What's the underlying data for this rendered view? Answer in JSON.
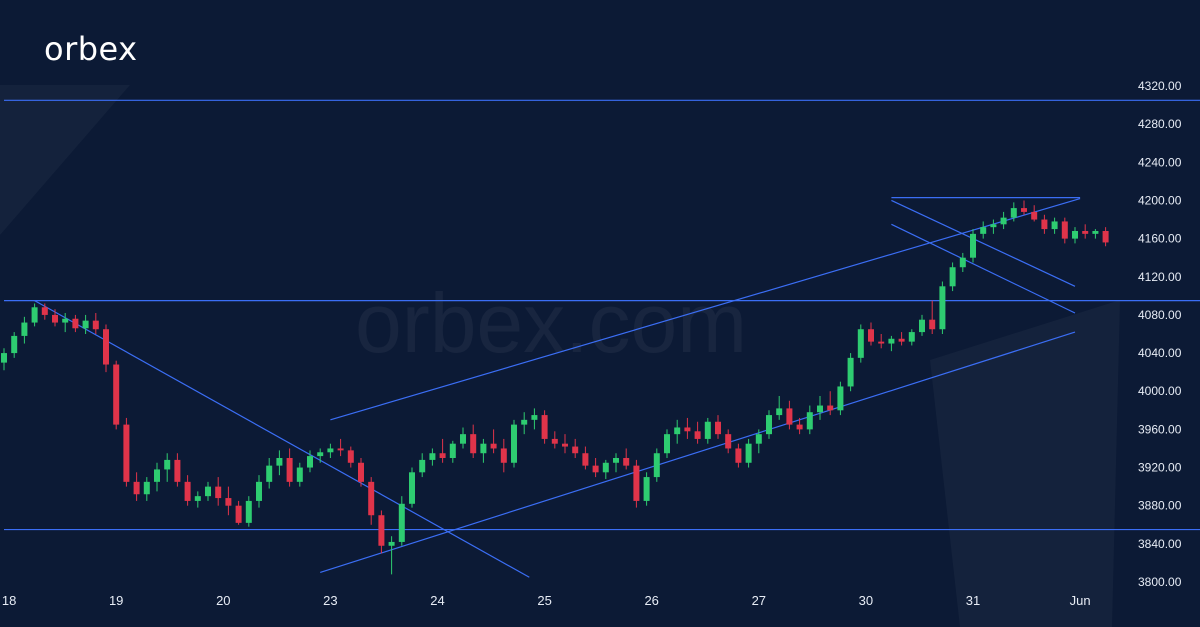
{
  "brand": {
    "logo_text": "orbex",
    "watermark_text": "orbex.com"
  },
  "colors": {
    "background": "#0c1a35",
    "line": "#3b6ef5",
    "bull": "#2ecc71",
    "bear": "#e0344a",
    "text": "#e7ecf5"
  },
  "chart_data": {
    "type": "candlestick",
    "ylim": [
      3800,
      4320
    ],
    "y_ticks": [
      "3800.00",
      "3840.00",
      "3880.00",
      "3920.00",
      "3960.00",
      "4000.00",
      "4040.00",
      "4080.00",
      "4120.00",
      "4160.00",
      "4200.00",
      "4240.00",
      "4280.00",
      "4320.00"
    ],
    "x_labels": [
      "18",
      "19",
      "20",
      "23",
      "24",
      "25",
      "26",
      "27",
      "30",
      "31",
      "Jun"
    ],
    "x_label_index": [
      0.5,
      11.0,
      21.5,
      32.0,
      42.5,
      53.0,
      63.5,
      74.0,
      84.5,
      95.0,
      105.5
    ],
    "candles": [
      [
        4030,
        4045,
        4022,
        4040
      ],
      [
        4040,
        4062,
        4035,
        4058
      ],
      [
        4058,
        4078,
        4050,
        4072
      ],
      [
        4072,
        4092,
        4068,
        4088
      ],
      [
        4088,
        4092,
        4075,
        4080
      ],
      [
        4080,
        4086,
        4068,
        4072
      ],
      [
        4072,
        4082,
        4062,
        4076
      ],
      [
        4076,
        4080,
        4062,
        4066
      ],
      [
        4066,
        4080,
        4060,
        4074
      ],
      [
        4074,
        4082,
        4060,
        4065
      ],
      [
        4065,
        4070,
        4020,
        4028
      ],
      [
        4028,
        4032,
        3960,
        3965
      ],
      [
        3965,
        3972,
        3900,
        3905
      ],
      [
        3905,
        3915,
        3885,
        3892
      ],
      [
        3892,
        3910,
        3885,
        3905
      ],
      [
        3905,
        3925,
        3895,
        3918
      ],
      [
        3918,
        3935,
        3905,
        3928
      ],
      [
        3928,
        3935,
        3900,
        3905
      ],
      [
        3905,
        3912,
        3880,
        3885
      ],
      [
        3885,
        3895,
        3878,
        3890
      ],
      [
        3890,
        3905,
        3885,
        3900
      ],
      [
        3900,
        3910,
        3880,
        3888
      ],
      [
        3888,
        3900,
        3870,
        3880
      ],
      [
        3880,
        3885,
        3860,
        3862
      ],
      [
        3862,
        3890,
        3858,
        3885
      ],
      [
        3885,
        3912,
        3878,
        3905
      ],
      [
        3905,
        3930,
        3898,
        3922
      ],
      [
        3922,
        3938,
        3912,
        3930
      ],
      [
        3930,
        3940,
        3900,
        3905
      ],
      [
        3905,
        3925,
        3900,
        3920
      ],
      [
        3920,
        3938,
        3915,
        3932
      ],
      [
        3932,
        3940,
        3925,
        3936
      ],
      [
        3936,
        3945,
        3930,
        3940
      ],
      [
        3940,
        3950,
        3932,
        3938
      ],
      [
        3938,
        3942,
        3920,
        3925
      ],
      [
        3925,
        3930,
        3900,
        3905
      ],
      [
        3905,
        3910,
        3860,
        3870
      ],
      [
        3870,
        3875,
        3830,
        3838
      ],
      [
        3838,
        3848,
        3808,
        3842
      ],
      [
        3842,
        3890,
        3838,
        3882
      ],
      [
        3882,
        3920,
        3878,
        3915
      ],
      [
        3915,
        3935,
        3910,
        3928
      ],
      [
        3928,
        3940,
        3922,
        3935
      ],
      [
        3935,
        3950,
        3925,
        3930
      ],
      [
        3930,
        3948,
        3925,
        3945
      ],
      [
        3945,
        3962,
        3940,
        3955
      ],
      [
        3955,
        3965,
        3930,
        3935
      ],
      [
        3935,
        3950,
        3925,
        3945
      ],
      [
        3945,
        3960,
        3935,
        3940
      ],
      [
        3940,
        3950,
        3915,
        3925
      ],
      [
        3925,
        3970,
        3920,
        3965
      ],
      [
        3965,
        3978,
        3955,
        3970
      ],
      [
        3970,
        3982,
        3960,
        3975
      ],
      [
        3975,
        3980,
        3945,
        3950
      ],
      [
        3950,
        3958,
        3940,
        3945
      ],
      [
        3945,
        3955,
        3935,
        3942
      ],
      [
        3942,
        3950,
        3930,
        3935
      ],
      [
        3935,
        3942,
        3918,
        3922
      ],
      [
        3922,
        3930,
        3910,
        3915
      ],
      [
        3915,
        3928,
        3908,
        3925
      ],
      [
        3925,
        3935,
        3915,
        3930
      ],
      [
        3930,
        3940,
        3918,
        3922
      ],
      [
        3922,
        3928,
        3878,
        3885
      ],
      [
        3885,
        3915,
        3880,
        3910
      ],
      [
        3910,
        3940,
        3905,
        3935
      ],
      [
        3935,
        3960,
        3930,
        3955
      ],
      [
        3955,
        3970,
        3945,
        3962
      ],
      [
        3962,
        3972,
        3950,
        3958
      ],
      [
        3958,
        3968,
        3945,
        3950
      ],
      [
        3950,
        3972,
        3945,
        3968
      ],
      [
        3968,
        3975,
        3950,
        3955
      ],
      [
        3955,
        3960,
        3935,
        3940
      ],
      [
        3940,
        3945,
        3920,
        3925
      ],
      [
        3925,
        3950,
        3920,
        3945
      ],
      [
        3945,
        3960,
        3935,
        3955
      ],
      [
        3955,
        3980,
        3950,
        3975
      ],
      [
        3975,
        3995,
        3970,
        3982
      ],
      [
        3982,
        3990,
        3960,
        3965
      ],
      [
        3965,
        3972,
        3955,
        3960
      ],
      [
        3960,
        3985,
        3955,
        3978
      ],
      [
        3978,
        3995,
        3970,
        3985
      ],
      [
        3985,
        4000,
        3975,
        3980
      ],
      [
        3980,
        4010,
        3975,
        4005
      ],
      [
        4005,
        4040,
        4000,
        4035
      ],
      [
        4035,
        4070,
        4030,
        4065
      ],
      [
        4065,
        4072,
        4048,
        4052
      ],
      [
        4052,
        4060,
        4045,
        4050
      ],
      [
        4050,
        4058,
        4042,
        4055
      ],
      [
        4055,
        4062,
        4048,
        4052
      ],
      [
        4052,
        4065,
        4048,
        4062
      ],
      [
        4062,
        4080,
        4058,
        4075
      ],
      [
        4075,
        4095,
        4060,
        4065
      ],
      [
        4065,
        4115,
        4060,
        4110
      ],
      [
        4110,
        4135,
        4105,
        4130
      ],
      [
        4130,
        4145,
        4125,
        4140
      ],
      [
        4140,
        4170,
        4135,
        4165
      ],
      [
        4165,
        4178,
        4160,
        4172
      ],
      [
        4172,
        4180,
        4165,
        4175
      ],
      [
        4175,
        4188,
        4170,
        4182
      ],
      [
        4182,
        4198,
        4178,
        4192
      ],
      [
        4192,
        4200,
        4185,
        4188
      ],
      [
        4188,
        4195,
        4178,
        4180
      ],
      [
        4180,
        4185,
        4165,
        4170
      ],
      [
        4170,
        4182,
        4165,
        4178
      ],
      [
        4178,
        4182,
        4155,
        4160
      ],
      [
        4160,
        4172,
        4155,
        4168
      ],
      [
        4168,
        4175,
        4160,
        4165
      ],
      [
        4165,
        4170,
        4160,
        4168
      ],
      [
        4168,
        4172,
        4152,
        4156
      ]
    ],
    "overlay_lines": [
      {
        "name": "resistance-4305",
        "p1": [
          0,
          4305
        ],
        "p2": [
          120,
          4305
        ]
      },
      {
        "name": "resistance-4203",
        "p1": [
          87,
          4203
        ],
        "p2": [
          105.5,
          4203
        ]
      },
      {
        "name": "support-4095",
        "p1": [
          0,
          4095
        ],
        "p2": [
          120,
          4095
        ]
      },
      {
        "name": "support-3855",
        "p1": [
          0,
          3855
        ],
        "p2": [
          120,
          3855
        ]
      },
      {
        "name": "channel-upper",
        "p1": [
          32,
          3970
        ],
        "p2": [
          105.5,
          4202
        ]
      },
      {
        "name": "channel-lower",
        "p1": [
          31,
          3810
        ],
        "p2": [
          105,
          4062
        ]
      },
      {
        "name": "downtrend-line",
        "p1": [
          3,
          4095
        ],
        "p2": [
          51.5,
          3805
        ]
      },
      {
        "name": "flag-upper",
        "p1": [
          87,
          4200
        ],
        "p2": [
          105,
          4110
        ]
      },
      {
        "name": "flag-lower",
        "p1": [
          87,
          4175
        ],
        "p2": [
          105,
          4082
        ]
      }
    ]
  }
}
